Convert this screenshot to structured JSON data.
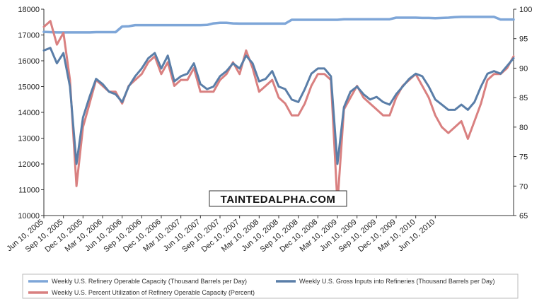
{
  "chart_data": {
    "type": "line",
    "title": "",
    "xlabel": "",
    "ylabel_left": "",
    "ylabel_right": "",
    "ylim_left": [
      10000,
      18000
    ],
    "ylim_right": [
      65,
      100
    ],
    "yticks_left": [
      "10000",
      "11000",
      "12000",
      "13000",
      "14000",
      "15000",
      "16000",
      "17000",
      "18000"
    ],
    "yticks_right": [
      "65",
      "70",
      "75",
      "80",
      "85",
      "90",
      "95",
      "100"
    ],
    "grid": false,
    "legend_position": "bottom",
    "x_ticks": [
      "Jun 10, 2005",
      "Sep 10, 2005",
      "Dec 10, 2005",
      "Mar 10, 2006",
      "Jun 10, 2006",
      "Sep 10, 2006",
      "Dec 10, 2006",
      "Mar 10, 2007",
      "Jun 10, 2007",
      "Sep 10, 2007",
      "Dec 10, 2007",
      "Mar 10, 2008",
      "Jun 10, 2008",
      "Sep 10, 2008",
      "Dec 10, 2008",
      "Mar 10, 2009",
      "Jun 10, 2009",
      "Sep 10, 2009",
      "Dec 10, 2009",
      "Mar 10, 2010",
      "Jun 10, 2010"
    ],
    "x_period": "monthly",
    "x_start": "Jun 2005",
    "series": [
      {
        "name": "Weekly U.S. Refinery Operable Capacity  (Thousand Barrels per Day)",
        "axis": "left",
        "color": "#7ea6d8",
        "values": [
          17120,
          17110,
          17100,
          17100,
          17100,
          17100,
          17100,
          17100,
          17110,
          17110,
          17110,
          17110,
          17330,
          17340,
          17380,
          17380,
          17380,
          17380,
          17380,
          17380,
          17380,
          17380,
          17380,
          17380,
          17380,
          17390,
          17450,
          17470,
          17470,
          17450,
          17440,
          17440,
          17440,
          17440,
          17440,
          17440,
          17440,
          17440,
          17590,
          17590,
          17590,
          17590,
          17590,
          17590,
          17590,
          17590,
          17610,
          17610,
          17610,
          17610,
          17610,
          17610,
          17610,
          17610,
          17670,
          17670,
          17670,
          17670,
          17660,
          17660,
          17650,
          17660,
          17670,
          17690,
          17700,
          17700,
          17700,
          17700,
          17700,
          17700,
          17600,
          17600,
          17600
        ]
      },
      {
        "name": "Weekly U.S. Gross Inputs into Refineries  (Thousand Barrels per Day)",
        "axis": "left",
        "color": "#5a7ea8",
        "values": [
          16400,
          16500,
          15900,
          16300,
          15000,
          12000,
          13800,
          14600,
          15300,
          15100,
          14800,
          14700,
          14400,
          15000,
          15400,
          15700,
          16100,
          16300,
          15700,
          16200,
          15200,
          15400,
          15500,
          15900,
          15100,
          14900,
          15000,
          15400,
          15600,
          15900,
          15700,
          16200,
          15900,
          15200,
          15300,
          15600,
          15000,
          14900,
          14500,
          14400,
          14900,
          15500,
          15700,
          15700,
          15400,
          12000,
          14200,
          14800,
          15000,
          14700,
          14500,
          14600,
          14400,
          14300,
          14700,
          15000,
          15300,
          15500,
          15400,
          15000,
          14500,
          14300,
          14100,
          14100,
          14300,
          14100,
          14400,
          15000,
          15500,
          15600,
          15500,
          15800,
          16100
        ]
      },
      {
        "name": "Weekly U.S. Percent Utilization of Refinery Operable Capacity  (Percent)",
        "axis": "right",
        "color": "#d98080",
        "values": [
          97,
          98,
          94,
          96,
          88,
          70,
          80,
          84,
          88,
          87,
          86,
          86,
          84,
          87,
          88,
          89,
          91,
          92,
          89,
          91,
          87,
          88,
          88,
          90,
          86,
          86,
          86,
          88,
          89,
          91,
          89,
          93,
          90,
          86,
          87,
          88,
          85,
          84,
          82,
          82,
          84,
          87,
          89,
          89,
          88,
          67,
          83,
          85,
          87,
          85,
          84,
          83,
          82,
          82,
          85,
          87,
          88,
          89,
          87,
          85,
          82,
          80,
          79,
          80,
          81,
          78,
          81,
          84,
          88,
          89,
          89,
          90,
          92
        ]
      }
    ],
    "annotation": "TAINTEDALPHA.COM"
  }
}
